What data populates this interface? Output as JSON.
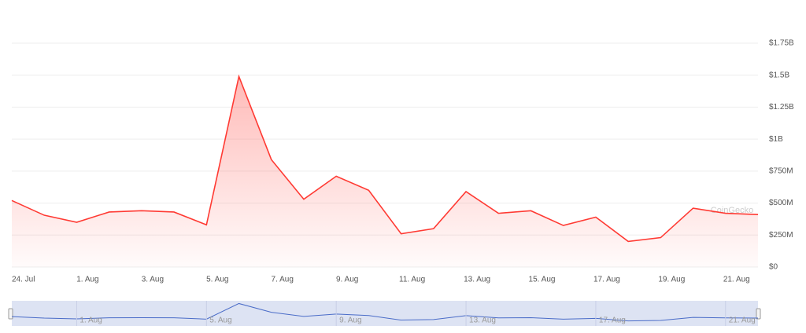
{
  "chart_data": {
    "type": "area",
    "categories": [
      "24. Jul",
      null,
      "1. Aug",
      null,
      "3. Aug",
      null,
      "5. Aug",
      null,
      "7. Aug",
      null,
      "9. Aug",
      null,
      "11. Aug",
      null,
      "13. Aug",
      null,
      "15. Aug",
      null,
      "17. Aug",
      null,
      "19. Aug",
      null,
      "21. Aug",
      null
    ],
    "series": [
      {
        "color": "#ff3a33",
        "values": [
          520000000,
          405000000,
          350000000,
          430000000,
          440000000,
          430000000,
          330000000,
          1490000000,
          840000000,
          530000000,
          710000000,
          600000000,
          260000000,
          300000000,
          590000000,
          420000000,
          440000000,
          325000000,
          390000000,
          200000000,
          230000000,
          460000000,
          420000000,
          410000000
        ]
      }
    ],
    "ylim": [
      0,
      1750000000
    ],
    "yticks": [
      {
        "value": 0,
        "label": "$0"
      },
      {
        "value": 250000000,
        "label": "$250M"
      },
      {
        "value": 500000000,
        "label": "$500M"
      },
      {
        "value": 750000000,
        "label": "$750M"
      },
      {
        "value": 1000000000,
        "label": "$1B"
      },
      {
        "value": 1250000000,
        "label": "$1.25B"
      },
      {
        "value": 1500000000,
        "label": "$1.5B"
      },
      {
        "value": 1750000000,
        "label": "$1.75B"
      }
    ],
    "grid": true,
    "watermark": "CoinGecko",
    "navigator": {
      "color": "#4a6cc8",
      "labels": [
        "1. Aug",
        "5. Aug",
        "9. Aug",
        "13. Aug",
        "17. Aug",
        "21. Aug"
      ]
    }
  }
}
